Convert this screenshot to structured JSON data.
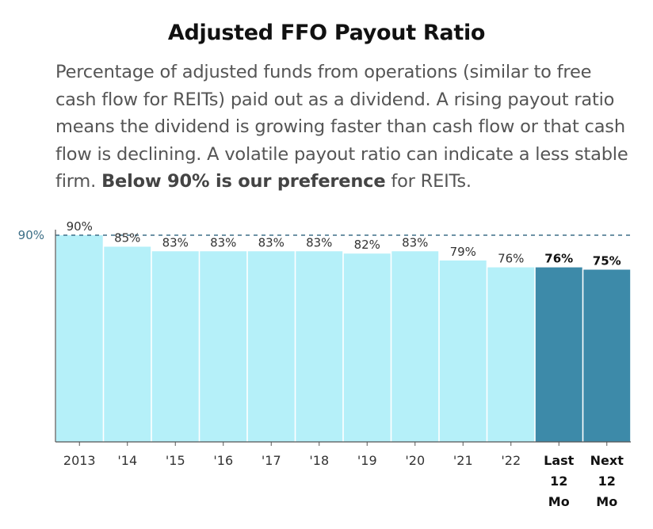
{
  "title": "Adjusted FFO Payout Ratio",
  "description": {
    "before": "Percentage of adjusted funds from operations (similar to free cash flow for REITs) paid out as a dividend. A rising payout ratio means the dividend is growing faster than cash flow or that cash flow is declining. A volatile payout ratio can indicate a less stable firm. ",
    "emphasis": "Below 90% is our preference",
    "after": " for REITs."
  },
  "colors": {
    "historical": "#b5f0f9",
    "projected": "#3d8aa9",
    "reference_line": "#3d6f87",
    "axis": "#555555"
  },
  "chart_data": {
    "type": "bar",
    "categories": [
      "2013",
      "'14",
      "'15",
      "'16",
      "'17",
      "'18",
      "'19",
      "'20",
      "'21",
      "'22",
      "Last 12 Mo",
      "Next 12 Mo"
    ],
    "category_lines": [
      [
        "2013"
      ],
      [
        "'14"
      ],
      [
        "'15"
      ],
      [
        "'16"
      ],
      [
        "'17"
      ],
      [
        "'18"
      ],
      [
        "'19"
      ],
      [
        "'20"
      ],
      [
        "'21"
      ],
      [
        "'22"
      ],
      [
        "Last",
        "12",
        "Mo"
      ],
      [
        "Next",
        "12",
        "Mo"
      ]
    ],
    "values": [
      90,
      85,
      83,
      83,
      83,
      83,
      82,
      83,
      79,
      76,
      76,
      75
    ],
    "value_labels": [
      "90%",
      "85%",
      "83%",
      "83%",
      "83%",
      "83%",
      "82%",
      "83%",
      "79%",
      "76%",
      "76%",
      "75%"
    ],
    "projected": [
      false,
      false,
      false,
      false,
      false,
      false,
      false,
      false,
      false,
      false,
      true,
      true
    ],
    "reference_line": {
      "value": 90,
      "label": "90%",
      "style": "dashed"
    },
    "ylim": [
      0,
      90
    ],
    "grid": false
  }
}
